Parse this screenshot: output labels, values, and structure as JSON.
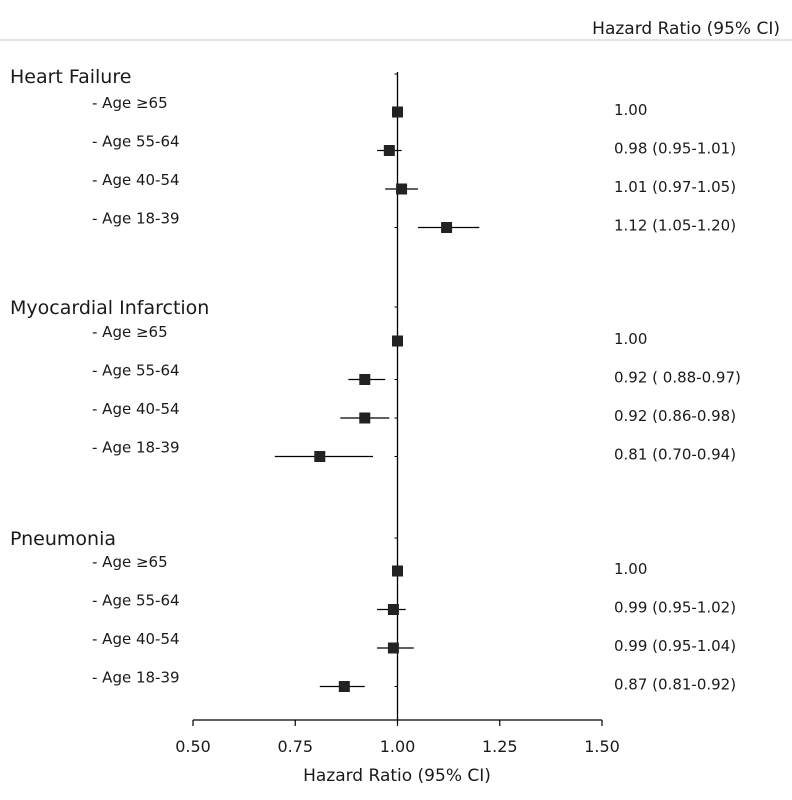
{
  "chart_data": {
    "type": "forest",
    "header": "Hazard Ratio (95% CI)",
    "xlabel": "Hazard Ratio (95% CI)",
    "xlim": [
      0.5,
      1.5
    ],
    "xticks": [
      "0.50",
      "0.75",
      "1.00",
      "1.25",
      "1.50"
    ],
    "reference": 1.0,
    "colors": {
      "marker": "#222222",
      "line": "#000000"
    },
    "groups": [
      {
        "name": "Heart Failure",
        "rows": [
          {
            "label": "- Age ≥65",
            "hr": 1.0,
            "lo": 1.0,
            "hi": 1.0,
            "text": "1.00"
          },
          {
            "label": "- Age 55-64",
            "hr": 0.98,
            "lo": 0.95,
            "hi": 1.01,
            "text": "0.98 (0.95-1.01)"
          },
          {
            "label": "- Age 40-54",
            "hr": 1.01,
            "lo": 0.97,
            "hi": 1.05,
            "text": "1.01 (0.97-1.05)"
          },
          {
            "label": "- Age 18-39",
            "hr": 1.12,
            "lo": 1.05,
            "hi": 1.2,
            "text": "1.12 (1.05-1.20)"
          }
        ]
      },
      {
        "name": "Myocardial Infarction",
        "rows": [
          {
            "label": "- Age ≥65",
            "hr": 1.0,
            "lo": 1.0,
            "hi": 1.0,
            "text": "1.00"
          },
          {
            "label": "- Age 55-64",
            "hr": 0.92,
            "lo": 0.88,
            "hi": 0.97,
            "text": "0.92 ( 0.88-0.97)"
          },
          {
            "label": "- Age 40-54",
            "hr": 0.92,
            "lo": 0.86,
            "hi": 0.98,
            "text": "0.92 (0.86-0.98)"
          },
          {
            "label": "- Age 18-39",
            "hr": 0.81,
            "lo": 0.7,
            "hi": 0.94,
            "text": "0.81 (0.70-0.94)"
          }
        ]
      },
      {
        "name": "Pneumonia",
        "rows": [
          {
            "label": "- Age ≥65",
            "hr": 1.0,
            "lo": 1.0,
            "hi": 1.0,
            "text": "1.00"
          },
          {
            "label": "- Age 55-64",
            "hr": 0.99,
            "lo": 0.95,
            "hi": 1.02,
            "text": "0.99 (0.95-1.02)"
          },
          {
            "label": "- Age 40-54",
            "hr": 0.99,
            "lo": 0.95,
            "hi": 1.04,
            "text": "0.99 (0.95-1.04)"
          },
          {
            "label": "- Age 18-39",
            "hr": 0.87,
            "lo": 0.81,
            "hi": 0.92,
            "text": "0.87 (0.81-0.92)"
          }
        ]
      }
    ]
  }
}
